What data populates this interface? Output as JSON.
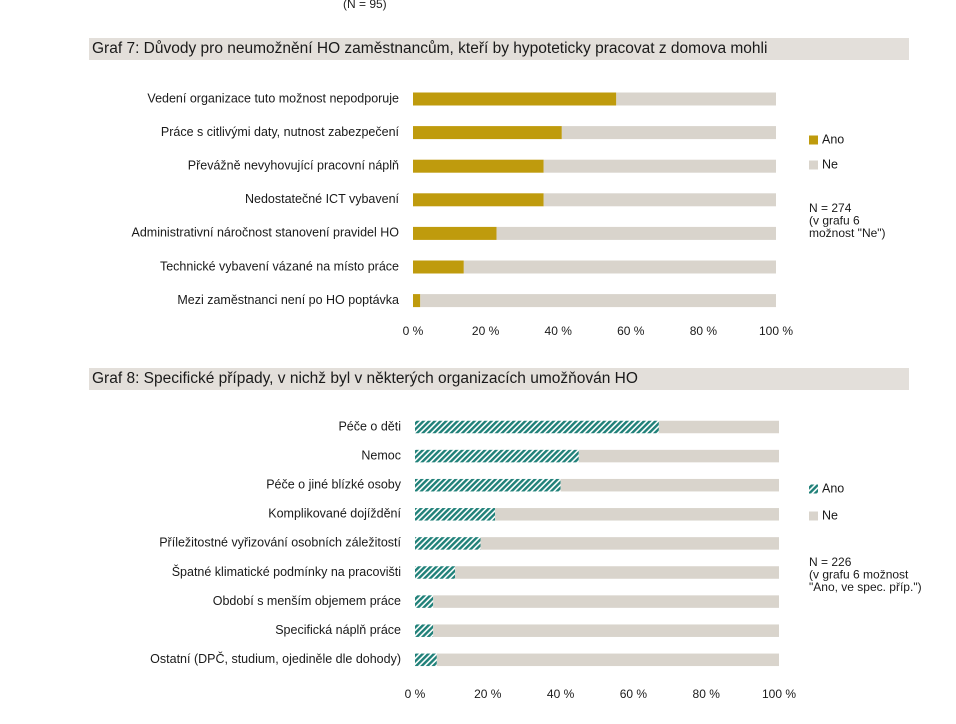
{
  "top_note": "(N = 95)",
  "chart_data": [
    {
      "type": "bar",
      "orientation": "horizontal",
      "stacked": true,
      "title": "Graf 7: Důvody pro neumožnění HO zaměstnancům, kteří by hypoteticky pracovat z domova mohli",
      "categories": [
        "Vedení organizace tuto možnost nepodporuje",
        "Práce s citlivými daty, nutnost zabezpečení",
        "Převážně nevyhovující pracovní náplň",
        "Nedostatečné ICT vybavení",
        "Administrativní náročnost stanovení pravidel HO",
        "Technické vybavení vázané na místo práce",
        "Mezi zaměstnanci není po HO poptávka"
      ],
      "series": [
        {
          "name": "Ano",
          "values": [
            56,
            41,
            36,
            36,
            23,
            14,
            2
          ],
          "color": "#bf9b0d",
          "pattern": "solid"
        },
        {
          "name": "Ne",
          "values": [
            44,
            59,
            64,
            64,
            77,
            86,
            98
          ],
          "color": "#d9d4cc",
          "pattern": "solid"
        }
      ],
      "xlim": [
        0,
        100
      ],
      "x_ticks": [
        "0 %",
        "20 %",
        "40 %",
        "60 %",
        "80 %",
        "100 %"
      ],
      "legend_position": "right",
      "note": "N = 274\n(v grafu 6\nmožnost \"Ne\")"
    },
    {
      "type": "bar",
      "orientation": "horizontal",
      "stacked": true,
      "title": "Graf 8: Specifické případy, v nichž byl v některých organizacích umožňován HO",
      "categories": [
        "Péče o děti",
        "Nemoc",
        "Péče o jiné blízké osoby",
        "Komplikované dojíždění",
        "Příležitostné vyřizování osobních záležitostí",
        "Špatné klimatické podmínky na pracovišti",
        "Období s menším objemem práce",
        "Specifická náplň práce",
        "Ostatní (DPČ, studium, ojediněle dle dohody)"
      ],
      "series": [
        {
          "name": "Ano",
          "values": [
            67,
            45,
            40,
            22,
            18,
            11,
            5,
            5,
            6
          ],
          "color": "#1f8078",
          "pattern": "hatched"
        },
        {
          "name": "Ne",
          "values": [
            33,
            55,
            60,
            78,
            82,
            89,
            95,
            95,
            94
          ],
          "color": "#d9d4cc",
          "pattern": "solid"
        }
      ],
      "xlim": [
        0,
        100
      ],
      "x_ticks": [
        "0 %",
        "20 %",
        "40 %",
        "60 %",
        "80 %",
        "100 %"
      ],
      "legend_position": "right",
      "note": "N = 226\n(v grafu 6 možnost\n\"Ano, ve spec. příp.\")"
    }
  ]
}
